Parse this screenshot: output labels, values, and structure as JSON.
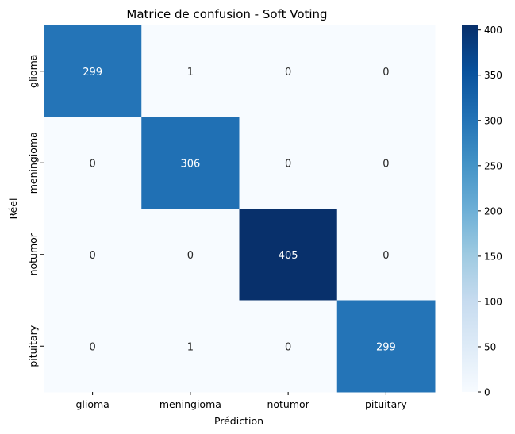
{
  "chart_data": {
    "type": "heatmap",
    "title": "Matrice de confusion - Soft Voting",
    "xlabel": "Prédiction",
    "ylabel": "Réel",
    "x_categories": [
      "glioma",
      "meningioma",
      "notumor",
      "pituitary"
    ],
    "y_categories": [
      "glioma",
      "meningioma",
      "notumor",
      "pituitary"
    ],
    "matrix": [
      [
        299,
        1,
        0,
        0
      ],
      [
        0,
        306,
        0,
        0
      ],
      [
        0,
        0,
        405,
        0
      ],
      [
        0,
        1,
        0,
        299
      ]
    ],
    "colormap": "Blues",
    "colorbar": {
      "range": [
        0,
        405
      ],
      "ticks": [
        0,
        50,
        100,
        150,
        200,
        250,
        300,
        350,
        400
      ]
    },
    "grid": false,
    "legend": "colorbar-right"
  }
}
